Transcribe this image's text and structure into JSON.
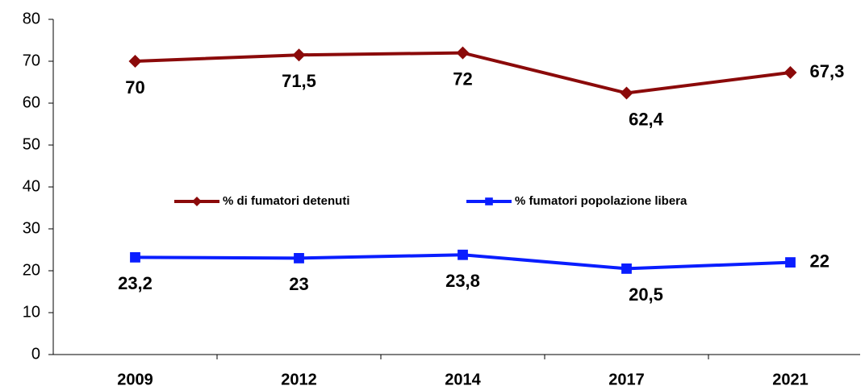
{
  "chart_data": {
    "type": "line",
    "categories": [
      "2009",
      "2012",
      "2014",
      "2017",
      "2021"
    ],
    "series": [
      {
        "name": "% di fumatori detenuti",
        "color": "#8b0a0a",
        "marker": "diamond",
        "values": [
          70,
          71.5,
          72,
          62.4,
          67.3
        ],
        "value_labels": [
          "70",
          "71,5",
          "72",
          "62,4",
          "67,3"
        ]
      },
      {
        "name": "% fumatori popolazione libera",
        "color": "#0a1eff",
        "marker": "square",
        "values": [
          23.2,
          23,
          23.8,
          20.5,
          22
        ],
        "value_labels": [
          "23,2",
          "23",
          "23,8",
          "20,5",
          "22"
        ]
      }
    ],
    "ylim": [
      0,
      80
    ],
    "yticks": [
      0,
      10,
      20,
      30,
      40,
      50,
      60,
      70,
      80
    ],
    "legend": "center"
  }
}
